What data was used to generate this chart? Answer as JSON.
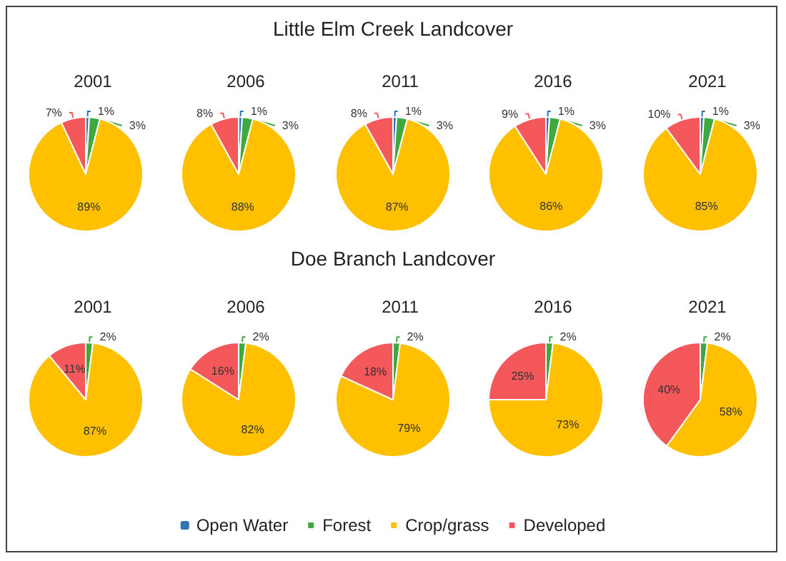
{
  "chart_data": [
    {
      "type": "pie",
      "title": "2001",
      "annotations": [
        "Little Elm Creek Landcover"
      ],
      "categories": [
        null,
        null,
        null,
        null
      ],
      "values": [
        1,
        3,
        89,
        7
      ],
      "value_labels": [
        "1%",
        "3%",
        "89%",
        "7%"
      ],
      "colors": [
        "#2e75b6",
        "#3fa83f",
        "#ffc000",
        "#f4585a"
      ]
    },
    {
      "type": "pie",
      "title": "2006",
      "categories": [
        null,
        null,
        null,
        null
      ],
      "values": [
        1,
        3,
        88,
        8
      ],
      "value_labels": [
        "1%",
        "3%",
        "88%",
        "8%"
      ],
      "colors": [
        "#2e75b6",
        "#3fa83f",
        "#ffc000",
        "#f4585a"
      ]
    },
    {
      "type": "pie",
      "title": "2011",
      "categories": [
        null,
        null,
        null,
        null
      ],
      "values": [
        1,
        3,
        87,
        8
      ],
      "value_labels": [
        "1%",
        "3%",
        "87%",
        "8%"
      ],
      "colors": [
        "#2e75b6",
        "#3fa83f",
        "#ffc000",
        "#f4585a"
      ]
    },
    {
      "type": "pie",
      "title": "2016",
      "categories": [
        null,
        null,
        null,
        null
      ],
      "values": [
        1,
        3,
        86,
        9
      ],
      "value_labels": [
        "1%",
        "3%",
        "86%",
        "9%"
      ],
      "colors": [
        "#2e75b6",
        "#3fa83f",
        "#ffc000",
        "#f4585a"
      ]
    },
    {
      "type": "pie",
      "title": "2021",
      "categories": [
        null,
        null,
        null,
        null
      ],
      "values": [
        1,
        3,
        85,
        10
      ],
      "value_labels": [
        "1%",
        "3%",
        "85%",
        "10%"
      ],
      "colors": [
        "#2e75b6",
        "#3fa83f",
        "#ffc000",
        "#f4585a"
      ]
    },
    {
      "type": "pie",
      "title": "2001",
      "annotations": [
        "Doe Branch Landcover"
      ],
      "categories": [
        null,
        null,
        null,
        null
      ],
      "values": [
        null,
        2,
        87,
        11
      ],
      "value_labels": [
        null,
        "2%",
        "87%",
        "11%"
      ],
      "colors": [
        "#2e75b6",
        "#3fa83f",
        "#ffc000",
        "#f4585a"
      ]
    },
    {
      "type": "pie",
      "title": "2006",
      "categories": [
        null,
        null,
        null,
        null
      ],
      "values": [
        null,
        2,
        82,
        16
      ],
      "value_labels": [
        null,
        "2%",
        "82%",
        "16%"
      ],
      "colors": [
        "#2e75b6",
        "#3fa83f",
        "#ffc000",
        "#f4585a"
      ]
    },
    {
      "type": "pie",
      "title": "2011",
      "categories": [
        null,
        null,
        null,
        null
      ],
      "values": [
        null,
        2,
        79,
        18
      ],
      "value_labels": [
        null,
        "2%",
        "79%",
        "18%"
      ],
      "colors": [
        "#2e75b6",
        "#3fa83f",
        "#ffc000",
        "#f4585a"
      ]
    },
    {
      "type": "pie",
      "title": "2016",
      "categories": [
        null,
        null,
        null,
        null
      ],
      "values": [
        null,
        2,
        73,
        25
      ],
      "value_labels": [
        null,
        "2%",
        "73%",
        "25%"
      ],
      "colors": [
        "#2e75b6",
        "#3fa83f",
        "#ffc000",
        "#f4585a"
      ]
    },
    {
      "type": "pie",
      "title": "2021",
      "legend": "bottom",
      "categories": [
        "Open Water",
        "Forest",
        "Crop/grass",
        "Developed"
      ],
      "values": [
        null,
        2,
        58,
        40
      ],
      "value_labels": [
        null,
        "2%",
        "58%",
        "40%"
      ],
      "colors": [
        "#2e75b6",
        "#3fa83f",
        "#ffc000",
        "#f4585a"
      ]
    }
  ]
}
